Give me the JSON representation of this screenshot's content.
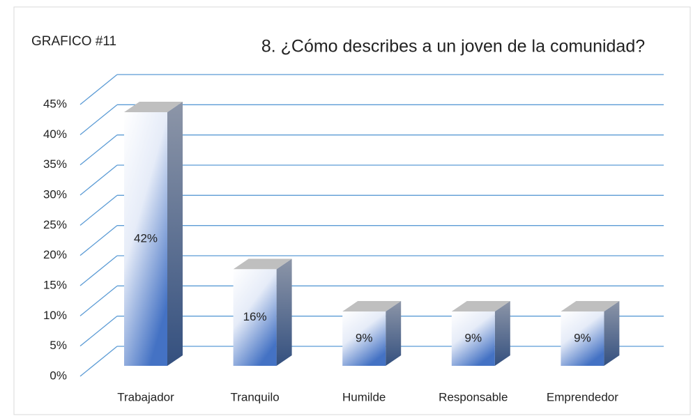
{
  "chart_data": {
    "type": "bar3d",
    "title": "8. ¿Cómo describes a un joven de la comunidad?",
    "annotation": "GRAFICO #11",
    "categories": [
      "Trabajador",
      "Tranquilo",
      "Humilde",
      "Responsable",
      "Emprendedor"
    ],
    "values": [
      42,
      16,
      9,
      9,
      9
    ],
    "value_labels": [
      "42%",
      "16%",
      "9%",
      "9%",
      "9%"
    ],
    "color": "#4472c4",
    "grid_color": "#5b9bd5",
    "ylim": [
      0,
      45
    ],
    "yticks": [
      {
        "value": 0,
        "label": "0%"
      },
      {
        "value": 5,
        "label": "5%"
      },
      {
        "value": 10,
        "label": "10%"
      },
      {
        "value": 15,
        "label": "15%"
      },
      {
        "value": 20,
        "label": "20%"
      },
      {
        "value": 25,
        "label": "25%"
      },
      {
        "value": 30,
        "label": "30%"
      },
      {
        "value": 35,
        "label": "35%"
      },
      {
        "value": 40,
        "label": "40%"
      },
      {
        "value": 45,
        "label": "45%"
      }
    ],
    "grid": true
  }
}
